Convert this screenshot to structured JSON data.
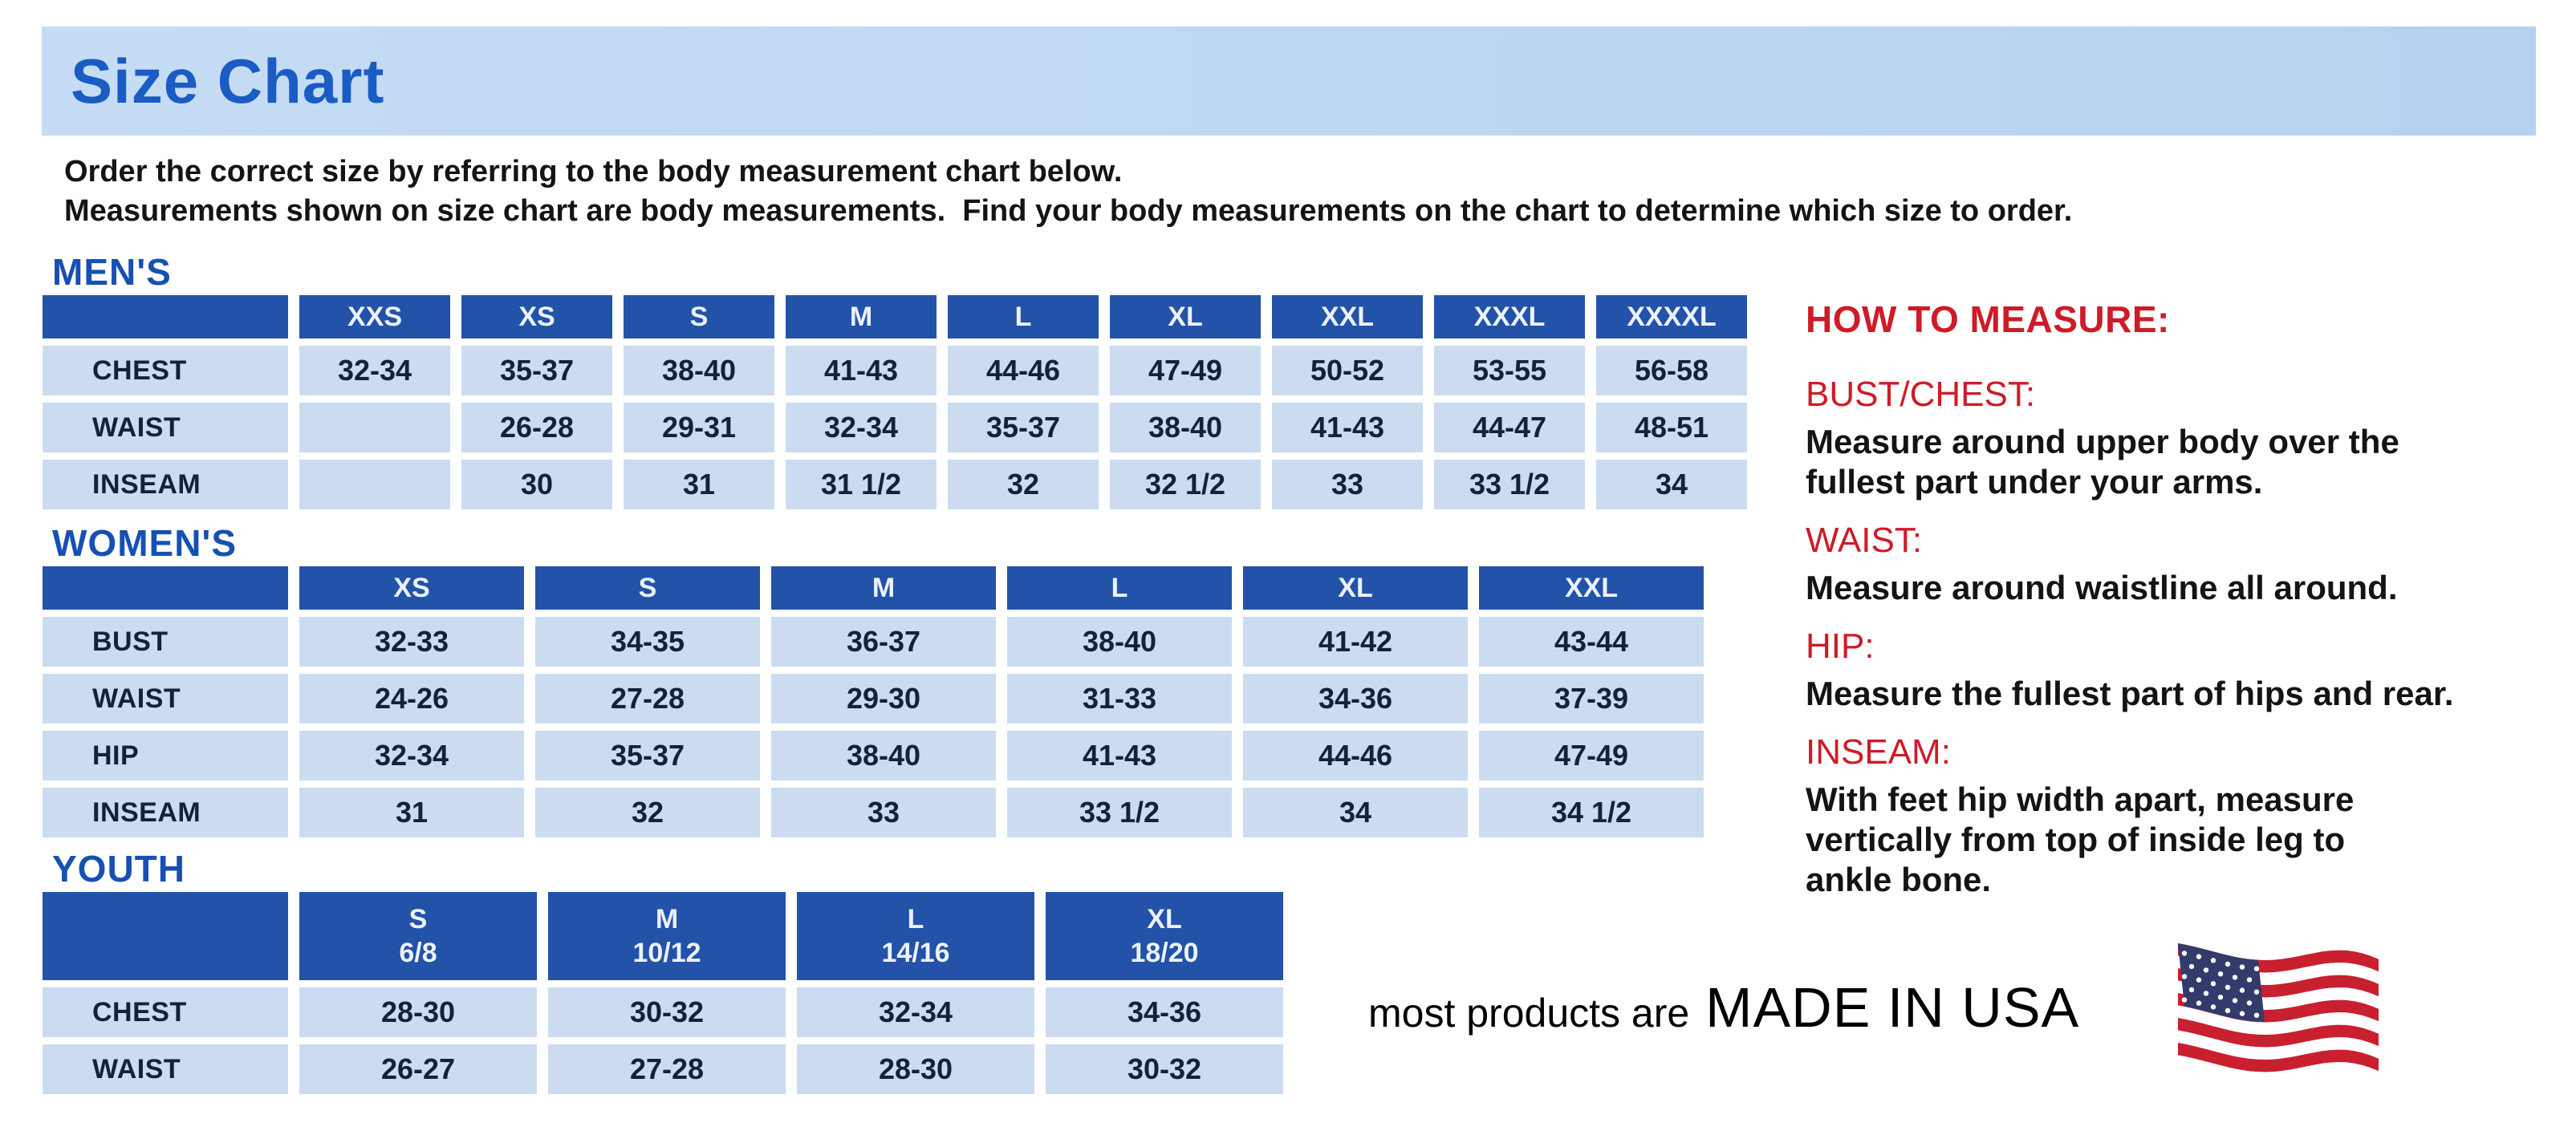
{
  "page": {
    "title": "Size Chart",
    "intro_line1": "Order the correct size by referring to the body measurement chart below.",
    "intro_line2": "Measurements shown on size chart are body measurements.  Find your body measurements on the chart to determine which size to order."
  },
  "colors": {
    "banner_bg": "#B6D2F0",
    "banner_bg2": "#C6DCF5",
    "title_blue": "#1A5BC4",
    "heading_blue": "#1750B4",
    "header_cell_bg": "#2352A9",
    "header_cell_text": "#ECF2FB",
    "cell_bg": "#CBDCF1",
    "cell_text": "#15203A",
    "red": "#CE1B28",
    "flag_red": "#C8202F",
    "flag_blue": "#323B6B",
    "flag_white": "#FFFFFF"
  },
  "tables": [
    {
      "id": "mens",
      "heading": "MEN'S",
      "columns": [
        "XXS",
        "XS",
        "S",
        "M",
        "L",
        "XL",
        "XXL",
        "XXXL",
        "XXXXL"
      ],
      "rows": [
        {
          "label": "CHEST",
          "values": [
            "32-34",
            "35-37",
            "38-40",
            "41-43",
            "44-46",
            "47-49",
            "50-52",
            "53-55",
            "56-58"
          ]
        },
        {
          "label": "WAIST",
          "values": [
            "",
            "26-28",
            "29-31",
            "32-34",
            "35-37",
            "38-40",
            "41-43",
            "44-47",
            "48-51"
          ]
        },
        {
          "label": "INSEAM",
          "values": [
            "",
            "30",
            "31",
            "31 1/2",
            "32",
            "32 1/2",
            "33",
            "33 1/2",
            "34"
          ]
        }
      ]
    },
    {
      "id": "womens",
      "heading": "WOMEN'S",
      "columns": [
        "XS",
        "S",
        "M",
        "L",
        "XL",
        "XXL"
      ],
      "rows": [
        {
          "label": "BUST",
          "values": [
            "32-33",
            "34-35",
            "36-37",
            "38-40",
            "41-42",
            "43-44"
          ]
        },
        {
          "label": "WAIST",
          "values": [
            "24-26",
            "27-28",
            "29-30",
            "31-33",
            "34-36",
            "37-39"
          ]
        },
        {
          "label": "HIP",
          "values": [
            "32-34",
            "35-37",
            "38-40",
            "41-43",
            "44-46",
            "47-49"
          ]
        },
        {
          "label": "INSEAM",
          "values": [
            "31",
            "32",
            "33",
            "33 1/2",
            "34",
            "34 1/2"
          ]
        }
      ]
    },
    {
      "id": "youth",
      "heading": "YOUTH",
      "columns": [
        "S\n6/8",
        "M\n10/12",
        "L\n14/16",
        "XL\n18/20"
      ],
      "rows": [
        {
          "label": "CHEST",
          "values": [
            "28-30",
            "30-32",
            "32-34",
            "34-36"
          ]
        },
        {
          "label": "WAIST",
          "values": [
            "26-27",
            "27-28",
            "28-30",
            "30-32"
          ]
        }
      ]
    }
  ],
  "how_to_measure": {
    "title": "HOW TO MEASURE:",
    "items": [
      {
        "label": "BUST/CHEST:",
        "text": "Measure around upper body over the\nfullest part under your arms."
      },
      {
        "label": "WAIST:",
        "text": "Measure around waistline all around."
      },
      {
        "label": "HIP:",
        "text": "Measure the fullest part of hips and rear."
      },
      {
        "label": "INSEAM:",
        "text": "With feet hip width apart, measure\nvertically from top of inside leg to\nankle bone."
      }
    ]
  },
  "footer": {
    "prefix": "most products are",
    "made_in": "MADE IN USA",
    "flag_icon": "usa-flag-icon"
  }
}
